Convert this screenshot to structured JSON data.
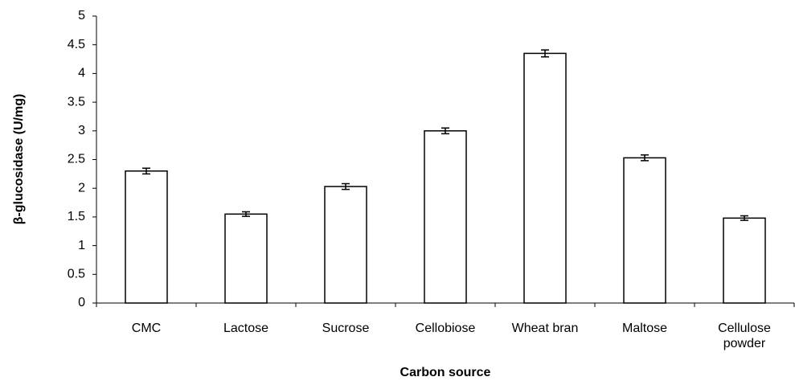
{
  "chart_data": {
    "type": "bar",
    "y_label": "β-glucosidase (U/mg)",
    "x_label": "Carbon source",
    "categories": [
      "CMC",
      "Lactose",
      "Sucrose",
      "Cellobiose",
      "Wheat bran",
      "Maltose",
      "Cellulose powder"
    ],
    "values": [
      2.3,
      1.55,
      2.03,
      3.0,
      4.35,
      2.53,
      1.48
    ],
    "errors": [
      0.05,
      0.04,
      0.05,
      0.05,
      0.06,
      0.05,
      0.04
    ],
    "color": "#ffffff",
    "ylim": [
      0,
      5
    ],
    "yticks": [
      0,
      0.5,
      1,
      1.5,
      2,
      2.5,
      3,
      3.5,
      4,
      4.5,
      5
    ]
  }
}
